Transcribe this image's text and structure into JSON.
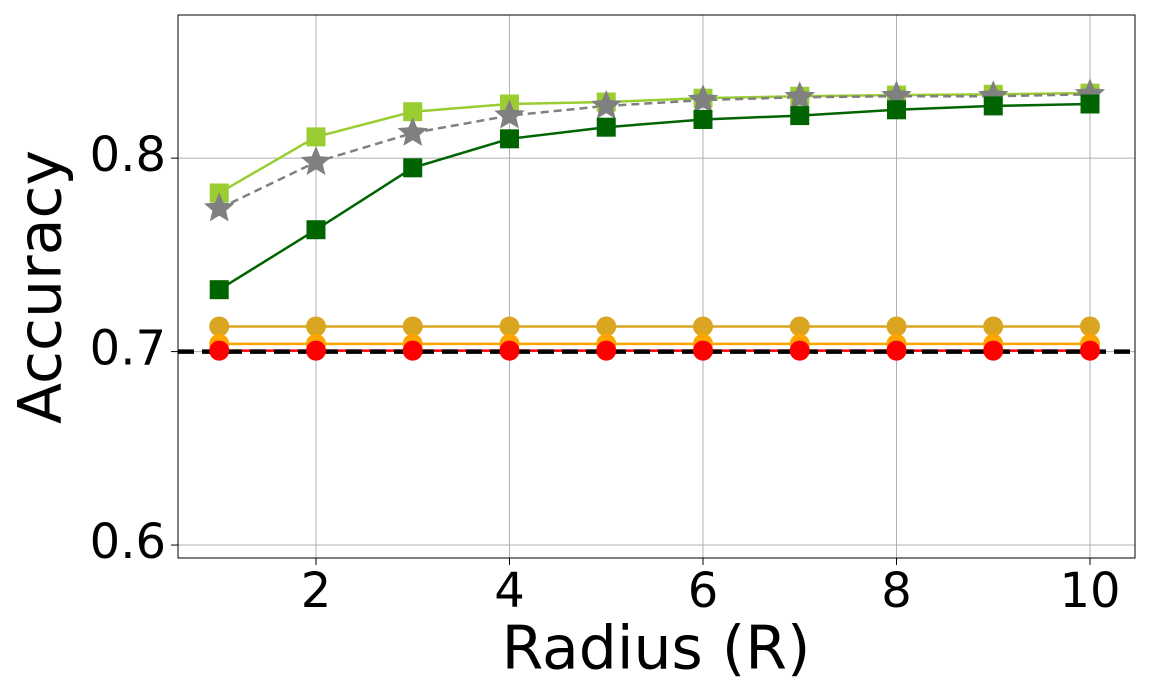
{
  "chart_data": {
    "type": "line",
    "xlabel": "Radius (R)",
    "ylabel": "Accuracy",
    "x": [
      1,
      2,
      3,
      4,
      5,
      6,
      7,
      8,
      9,
      10
    ],
    "xlim": [
      0.574,
      10.465
    ],
    "xticks": [
      2,
      4,
      6,
      8,
      10
    ],
    "ylim": [
      0.5933,
      0.874
    ],
    "yticks": [
      0.6,
      0.7,
      0.8
    ],
    "grid": true,
    "series": [
      {
        "color": "#9acd32",
        "marker": "square",
        "dashed": false,
        "values": [
          0.782,
          0.811,
          0.824,
          0.828,
          0.829,
          0.831,
          0.832,
          0.8326,
          0.833,
          0.8336
        ]
      },
      {
        "color": "#808080",
        "marker": "star",
        "dashed": true,
        "values": [
          0.774,
          0.798,
          0.813,
          0.822,
          0.827,
          0.83,
          0.8315,
          0.832,
          0.832,
          0.833
        ]
      },
      {
        "color": "#006400",
        "marker": "square",
        "dashed": false,
        "values": [
          0.732,
          0.763,
          0.795,
          0.81,
          0.816,
          0.82,
          0.822,
          0.825,
          0.827,
          0.828
        ]
      },
      {
        "color": "#daa520",
        "marker": "circle",
        "dashed": false,
        "values": [
          0.713,
          0.713,
          0.713,
          0.713,
          0.713,
          0.713,
          0.713,
          0.713,
          0.713,
          0.713
        ]
      },
      {
        "color": "#ffa500",
        "marker": "circle",
        "dashed": false,
        "values": [
          0.704,
          0.704,
          0.704,
          0.704,
          0.704,
          0.704,
          0.704,
          0.704,
          0.704,
          0.704
        ]
      },
      {
        "color": "#ff0000",
        "marker": "circle",
        "dashed": false,
        "values": [
          0.7005,
          0.7005,
          0.7005,
          0.7005,
          0.7005,
          0.7005,
          0.7005,
          0.7005,
          0.7005,
          0.7005
        ]
      }
    ],
    "hlines": [
      {
        "value": 0.7,
        "color": "#000000",
        "dashed": true
      }
    ]
  }
}
